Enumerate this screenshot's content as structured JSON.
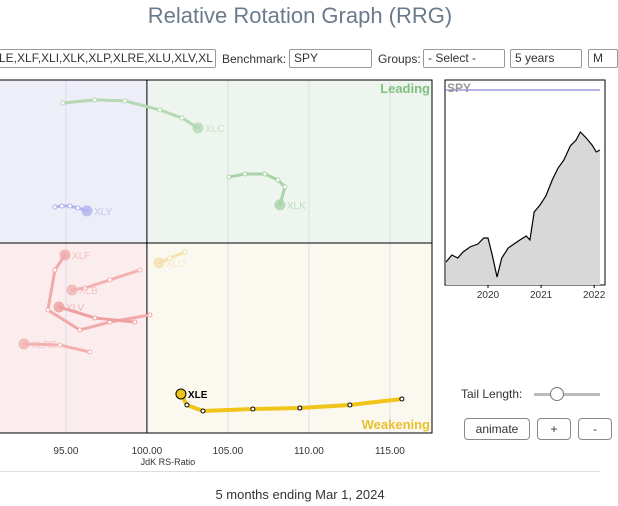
{
  "header": {
    "title": "Relative Rotation Graph (RRG)"
  },
  "controls": {
    "tickers": "LE,XLF,XLI,XLK,XLP,XLRE,XLU,XLV,XL",
    "benchmark_label": "Benchmark:",
    "benchmark": "SPY",
    "groups_label": "Groups:",
    "groups": "- Select -",
    "period": "5 years",
    "interval": "M",
    "tail_label": "Tail Length:",
    "buttons": [
      "animate",
      "+",
      "-"
    ]
  },
  "chart_data": [
    {
      "type": "scatter",
      "x_label": "JdK RS-Ratio",
      "xlim": [
        90.93,
        117.6
      ],
      "ylim": [
        88.27,
        110.06
      ],
      "center": [
        100,
        100
      ],
      "xticks": [
        {
          "value": 95,
          "label": "95.00"
        },
        {
          "value": 100,
          "label": "100.00"
        },
        {
          "value": 105,
          "label": "105.00"
        },
        {
          "value": 110,
          "label": "110.00"
        },
        {
          "value": 115,
          "label": "115.00"
        }
      ],
      "quadrants": {
        "leading": "Leading",
        "weakening": "Weakening"
      },
      "series": [
        {
          "name": "XLC",
          "color": "#b5d8b5",
          "x": [
            94.81,
            96.79,
            98.64,
            100.8,
            102.16,
            103.15
          ],
          "values": [
            108.64,
            108.83,
            108.77,
            108.21,
            107.72,
            107.1
          ]
        },
        {
          "name": "XLK",
          "color": "#a9d3a9",
          "x": [
            105.06,
            106.05,
            107.28,
            108.09,
            108.52,
            108.21
          ],
          "values": [
            104.07,
            104.26,
            104.26,
            103.89,
            103.46,
            102.35
          ]
        },
        {
          "name": "XLY",
          "color": "#b3b3ee",
          "x": [
            94.32,
            94.75,
            95.25,
            95.74,
            96.3
          ],
          "values": [
            102.22,
            102.28,
            102.28,
            102.16,
            101.98
          ]
        },
        {
          "name": "XLF",
          "color": "#f2a9a9",
          "x": [
            100.19,
            97.72,
            95.86,
            93.89,
            94.32,
            94.94
          ],
          "values": [
            95.56,
            95.12,
            94.63,
            95.86,
            98.33,
            99.26
          ]
        },
        {
          "name": "XLB",
          "color": "#f2b2b2",
          "x": [
            99.57,
            97.72,
            96.17,
            95.37
          ],
          "values": [
            98.33,
            97.72,
            97.22,
            97.1
          ]
        },
        {
          "name": "XLV",
          "color": "#eea0a0",
          "x": [
            99.26,
            96.79,
            94.57
          ],
          "values": [
            95.12,
            95.37,
            96.05
          ]
        },
        {
          "name": "XLRE",
          "color": "#f2b2b2",
          "x": [
            96.48,
            94.63,
            92.41
          ],
          "values": [
            93.27,
            93.7,
            93.77
          ]
        },
        {
          "name": "XLU",
          "color": "#f3e2b0",
          "x": [
            102.35,
            101.42,
            100.74
          ],
          "values": [
            99.44,
            99.07,
            98.77
          ]
        },
        {
          "name": "XLE",
          "color": "#f0c419",
          "highlight": true,
          "x": [
            115.74,
            112.53,
            109.44,
            106.54,
            103.46,
            102.47,
            102.1
          ],
          "values": [
            90.37,
            90.0,
            89.81,
            89.75,
            89.63,
            90.0,
            90.68
          ]
        }
      ]
    },
    {
      "type": "area",
      "title": "SPY",
      "color": "#000000",
      "xlim": [
        2019.19,
        2022.11
      ],
      "ylim": [
        200,
        500
      ],
      "xticks": [
        2020,
        2021,
        2022
      ],
      "x": [
        2019.21,
        2019.32,
        2019.43,
        2019.53,
        2019.66,
        2019.81,
        2019.92,
        2020,
        2020.08,
        2020.17,
        2020.26,
        2020.38,
        2020.49,
        2020.6,
        2020.72,
        2020.79,
        2020.87,
        2020.98,
        2021.09,
        2021.21,
        2021.32,
        2021.43,
        2021.55,
        2021.66,
        2021.74,
        2021.85,
        2021.96,
        2022.04,
        2022.11
      ],
      "values": [
        236.3,
        247.4,
        242.6,
        252.1,
        260,
        264.7,
        274.2,
        274.2,
        247.4,
        212.6,
        242.6,
        258.4,
        264.7,
        271.1,
        277.4,
        271.1,
        315.3,
        326.3,
        340.5,
        365.8,
        384.7,
        397.4,
        419.5,
        428.9,
        441.6,
        432.1,
        421.1,
        410,
        413.2
      ]
    }
  ],
  "footer": {
    "text": "5 months ending Mar 1, 2024"
  }
}
